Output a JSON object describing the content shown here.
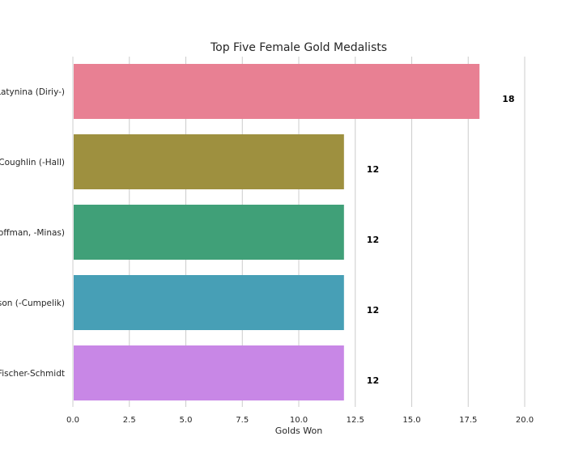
{
  "chart_data": {
    "type": "bar",
    "orientation": "horizontal",
    "title": "Top Five Female Gold Medalists",
    "xlabel": "Golds Won",
    "ylabel": "",
    "categories": [
      "Latynina (Diriy-)",
      "Coughlin (-Hall)",
      "Hoffman, -Minas)",
      "oson (-Cumpelik)",
      "Fischer-Schmidt"
    ],
    "values": [
      18,
      12,
      12,
      12,
      12
    ],
    "data_labels": [
      "18",
      "12",
      "12",
      "12",
      "12"
    ],
    "colors": [
      "#e88093",
      "#9e903f",
      "#40a078",
      "#479fb6",
      "#c887e6"
    ],
    "xlim": [
      0,
      20
    ],
    "xticks": [
      0,
      2.5,
      5,
      7.5,
      10,
      12.5,
      15,
      17.5,
      20
    ],
    "xtick_labels": [
      "0.0",
      "2.5",
      "5.0",
      "7.5",
      "10.0",
      "12.5",
      "15.0",
      "17.5",
      "20.0"
    ],
    "grid": "vertical"
  }
}
